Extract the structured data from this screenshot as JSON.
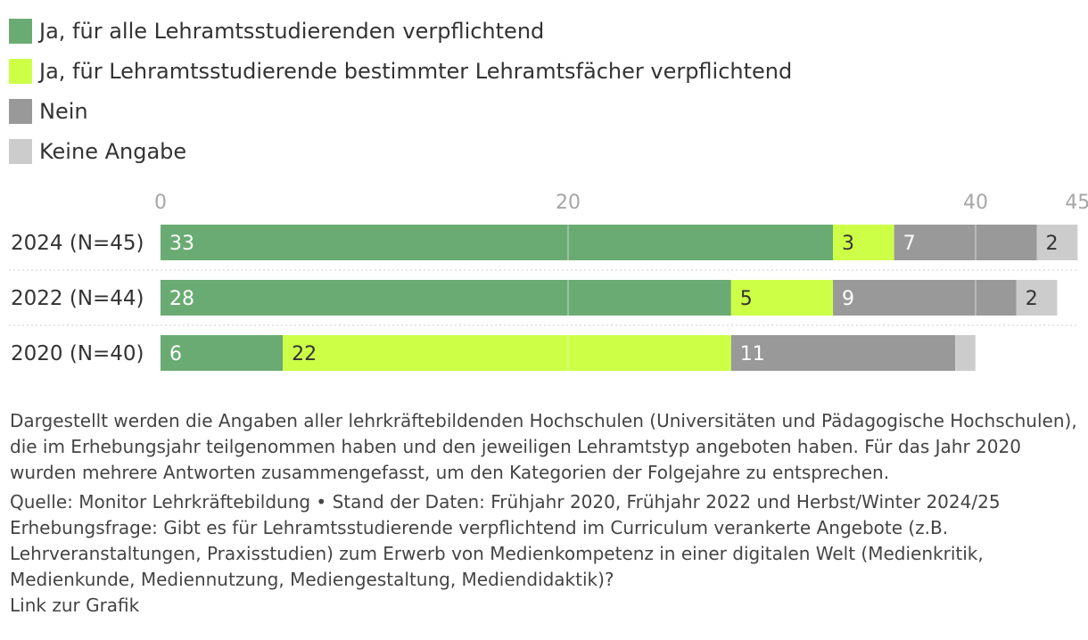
{
  "legend": [
    {
      "label": "Ja, für alle Lehramtsstudierenden verpflichtend",
      "color": "#6aab73"
    },
    {
      "label": "Ja, für Lehramtsstudierende bestimmter Lehramtsfächer verpflichtend",
      "color": "#cdff47"
    },
    {
      "label": "Nein",
      "color": "#999999"
    },
    {
      "label": "Keine Angabe",
      "color": "#cccccc"
    }
  ],
  "chart_data": {
    "type": "bar",
    "orientation": "horizontal",
    "stacked": true,
    "categories": [
      "2024 (N=45)",
      "2022 (N=44)",
      "2020 (N=40)"
    ],
    "series": [
      {
        "name": "Ja, für alle Lehramtsstudierenden verpflichtend",
        "color": "#6aab73",
        "values": [
          33,
          28,
          6
        ]
      },
      {
        "name": "Ja, für Lehramtsstudierende bestimmter Lehramtsfächer verpflichtend",
        "color": "#cdff47",
        "values": [
          3,
          5,
          22
        ]
      },
      {
        "name": "Nein",
        "color": "#999999",
        "values": [
          7,
          9,
          11
        ]
      },
      {
        "name": "Keine Angabe",
        "color": "#cccccc",
        "values": [
          2,
          2,
          1
        ]
      }
    ],
    "data_labels": [
      [
        "33",
        "3",
        "7",
        "2"
      ],
      [
        "28",
        "5",
        "9",
        "2"
      ],
      [
        "6",
        "22",
        "11",
        ""
      ]
    ],
    "xticks": [
      0,
      20,
      40,
      45
    ],
    "xlim": [
      0,
      45
    ],
    "grid": true
  },
  "notes": {
    "description": "Dargestellt werden die Angaben aller lehrkräftebildenden Hochschulen (Universitäten und Pädagogische Hochschulen), die im Erhebungsjahr teilgenommen haben und den jeweiligen Lehramtstyp angeboten haben. Für das Jahr 2020 wurden mehrere Antworten zusammengefasst, um den Kategorien der Folgejahre zu entsprechen.",
    "source": "Quelle: Monitor Lehrkräftebildung • Stand der Daten: Frühjahr 2020, Frühjahr 2022 und Herbst/Winter 2024/25",
    "question": "Erhebungsfrage: Gibt es für Lehramtsstudierende verpflichtend im Curriculum verankerte Angebote (z.B. Lehrveranstaltungen, Praxisstudien) zum Erwerb von Medienkompetenz in einer digitalen Welt (Medienkritik, Medienkunde, Mediennutzung, Mediengestaltung, Mediendidaktik)?",
    "link": "Link zur Grafik"
  }
}
